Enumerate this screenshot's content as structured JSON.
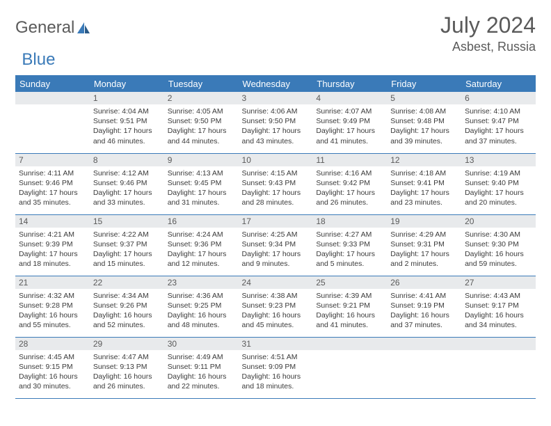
{
  "brand": {
    "part1": "General",
    "part2": "Blue"
  },
  "title": "July 2024",
  "location": "Asbest, Russia",
  "colors": {
    "header_bg": "#3a7ab8",
    "header_fg": "#ffffff",
    "daynum_bg": "#e8eaec",
    "text": "#3a3a3a",
    "muted": "#5a5a5a",
    "border": "#3a7ab8"
  },
  "weekdays": [
    "Sunday",
    "Monday",
    "Tuesday",
    "Wednesday",
    "Thursday",
    "Friday",
    "Saturday"
  ],
  "weeks": [
    [
      null,
      {
        "n": "1",
        "sr": "4:04 AM",
        "ss": "9:51 PM",
        "dl": "17 hours and 46 minutes."
      },
      {
        "n": "2",
        "sr": "4:05 AM",
        "ss": "9:50 PM",
        "dl": "17 hours and 44 minutes."
      },
      {
        "n": "3",
        "sr": "4:06 AM",
        "ss": "9:50 PM",
        "dl": "17 hours and 43 minutes."
      },
      {
        "n": "4",
        "sr": "4:07 AM",
        "ss": "9:49 PM",
        "dl": "17 hours and 41 minutes."
      },
      {
        "n": "5",
        "sr": "4:08 AM",
        "ss": "9:48 PM",
        "dl": "17 hours and 39 minutes."
      },
      {
        "n": "6",
        "sr": "4:10 AM",
        "ss": "9:47 PM",
        "dl": "17 hours and 37 minutes."
      }
    ],
    [
      {
        "n": "7",
        "sr": "4:11 AM",
        "ss": "9:46 PM",
        "dl": "17 hours and 35 minutes."
      },
      {
        "n": "8",
        "sr": "4:12 AM",
        "ss": "9:46 PM",
        "dl": "17 hours and 33 minutes."
      },
      {
        "n": "9",
        "sr": "4:13 AM",
        "ss": "9:45 PM",
        "dl": "17 hours and 31 minutes."
      },
      {
        "n": "10",
        "sr": "4:15 AM",
        "ss": "9:43 PM",
        "dl": "17 hours and 28 minutes."
      },
      {
        "n": "11",
        "sr": "4:16 AM",
        "ss": "9:42 PM",
        "dl": "17 hours and 26 minutes."
      },
      {
        "n": "12",
        "sr": "4:18 AM",
        "ss": "9:41 PM",
        "dl": "17 hours and 23 minutes."
      },
      {
        "n": "13",
        "sr": "4:19 AM",
        "ss": "9:40 PM",
        "dl": "17 hours and 20 minutes."
      }
    ],
    [
      {
        "n": "14",
        "sr": "4:21 AM",
        "ss": "9:39 PM",
        "dl": "17 hours and 18 minutes."
      },
      {
        "n": "15",
        "sr": "4:22 AM",
        "ss": "9:37 PM",
        "dl": "17 hours and 15 minutes."
      },
      {
        "n": "16",
        "sr": "4:24 AM",
        "ss": "9:36 PM",
        "dl": "17 hours and 12 minutes."
      },
      {
        "n": "17",
        "sr": "4:25 AM",
        "ss": "9:34 PM",
        "dl": "17 hours and 9 minutes."
      },
      {
        "n": "18",
        "sr": "4:27 AM",
        "ss": "9:33 PM",
        "dl": "17 hours and 5 minutes."
      },
      {
        "n": "19",
        "sr": "4:29 AM",
        "ss": "9:31 PM",
        "dl": "17 hours and 2 minutes."
      },
      {
        "n": "20",
        "sr": "4:30 AM",
        "ss": "9:30 PM",
        "dl": "16 hours and 59 minutes."
      }
    ],
    [
      {
        "n": "21",
        "sr": "4:32 AM",
        "ss": "9:28 PM",
        "dl": "16 hours and 55 minutes."
      },
      {
        "n": "22",
        "sr": "4:34 AM",
        "ss": "9:26 PM",
        "dl": "16 hours and 52 minutes."
      },
      {
        "n": "23",
        "sr": "4:36 AM",
        "ss": "9:25 PM",
        "dl": "16 hours and 48 minutes."
      },
      {
        "n": "24",
        "sr": "4:38 AM",
        "ss": "9:23 PM",
        "dl": "16 hours and 45 minutes."
      },
      {
        "n": "25",
        "sr": "4:39 AM",
        "ss": "9:21 PM",
        "dl": "16 hours and 41 minutes."
      },
      {
        "n": "26",
        "sr": "4:41 AM",
        "ss": "9:19 PM",
        "dl": "16 hours and 37 minutes."
      },
      {
        "n": "27",
        "sr": "4:43 AM",
        "ss": "9:17 PM",
        "dl": "16 hours and 34 minutes."
      }
    ],
    [
      {
        "n": "28",
        "sr": "4:45 AM",
        "ss": "9:15 PM",
        "dl": "16 hours and 30 minutes."
      },
      {
        "n": "29",
        "sr": "4:47 AM",
        "ss": "9:13 PM",
        "dl": "16 hours and 26 minutes."
      },
      {
        "n": "30",
        "sr": "4:49 AM",
        "ss": "9:11 PM",
        "dl": "16 hours and 22 minutes."
      },
      {
        "n": "31",
        "sr": "4:51 AM",
        "ss": "9:09 PM",
        "dl": "16 hours and 18 minutes."
      },
      null,
      null,
      null
    ]
  ]
}
